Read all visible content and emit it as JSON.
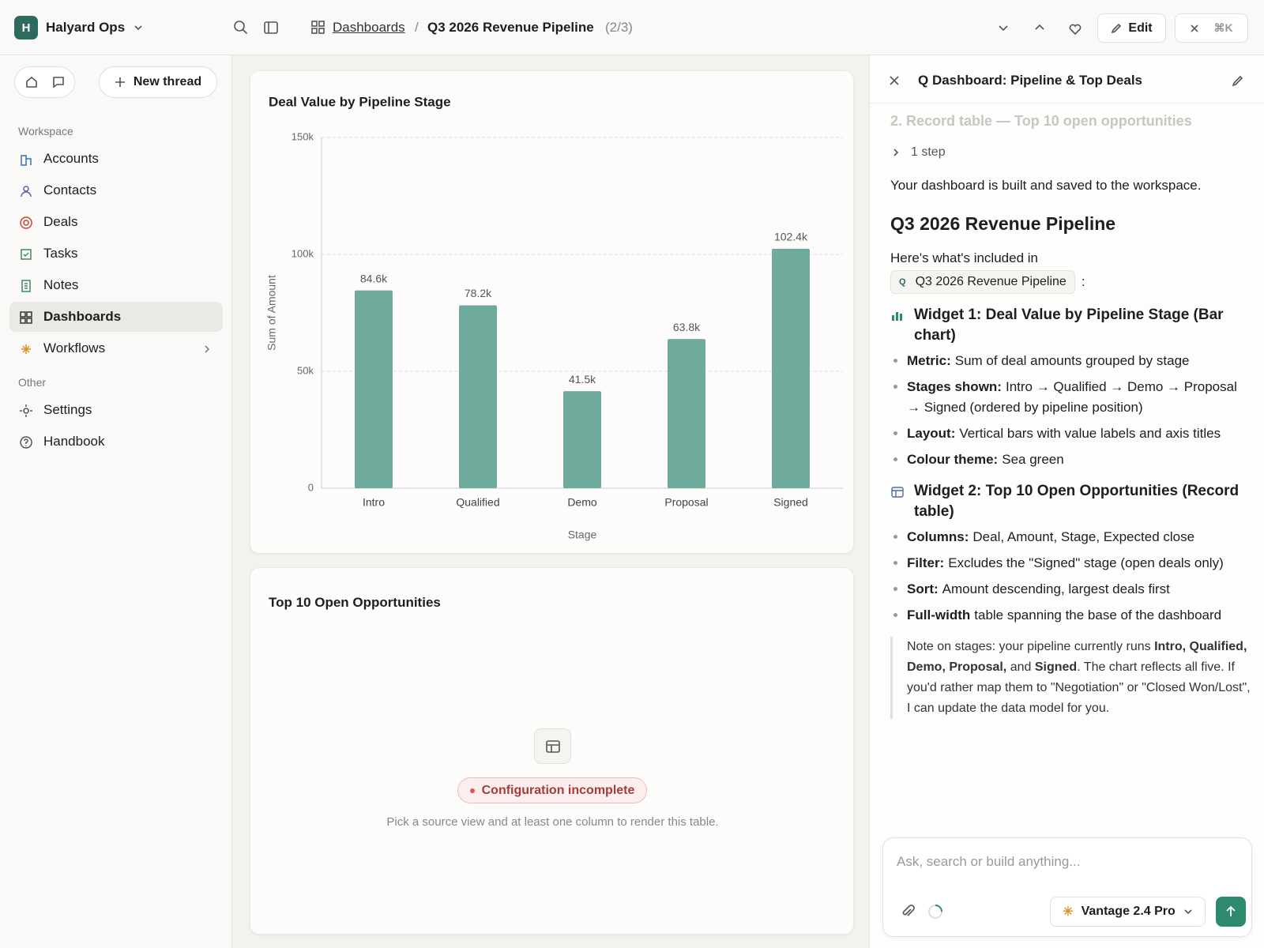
{
  "header": {
    "avatar": "H",
    "workspace": "Halyard Ops",
    "breadcrumb": "Dashboards",
    "separator": "/",
    "page": "Q3 2026 Revenue Pipeline",
    "position": "(2/3)",
    "edit": "Edit",
    "shortcut": "⌘K"
  },
  "sidebar": {
    "new_thread": "New thread",
    "sections": [
      {
        "title": "Workspace",
        "items": [
          "Accounts",
          "Contacts",
          "Deals",
          "Tasks",
          "Notes",
          "Dashboards",
          "Workflows"
        ]
      },
      {
        "title": "Other",
        "items": [
          "Settings",
          "Handbook"
        ]
      }
    ],
    "active": "Dashboards"
  },
  "chart_data": {
    "type": "bar",
    "title": "Deal Value by Pipeline Stage",
    "xlabel": "Stage",
    "ylabel": "Sum of Amount",
    "categories": [
      "Intro",
      "Qualified",
      "Demo",
      "Proposal",
      "Signed"
    ],
    "values": [
      84600,
      78200,
      41500,
      63800,
      102400
    ],
    "value_labels": [
      "84.6k",
      "78.2k",
      "41.5k",
      "63.8k",
      "102.4k"
    ],
    "color": "#6fab9d",
    "ylim": [
      0,
      150000
    ],
    "yticks": [
      0,
      {
        "value": 50000,
        "label": "50k"
      },
      {
        "value": 100000,
        "label": "100k"
      },
      {
        "value": 150000,
        "label": "150k"
      }
    ],
    "grid": true
  },
  "table_widget": {
    "title": "Top 10 Open Opportunities",
    "status": "Configuration incomplete",
    "hint": "Pick a source view and at least one column to render this table."
  },
  "panel": {
    "title": "Q Dashboard: Pipeline & Top Deals",
    "faded": "2. Record table — Top 10 open opportunities",
    "steps": "1 step",
    "intro": "Your dashboard is built and saved to the workspace.",
    "heading": "Q3 2026 Revenue Pipeline",
    "included": "Here's what's included in",
    "chip_icon": "Q",
    "chip": "Q3 2026 Revenue Pipeline",
    "colon": ":",
    "widgets": [
      {
        "heading": "Widget 1: Deal Value by Pipeline Stage (Bar chart)",
        "bullets": [
          {
            "label": "Metric:",
            "text": "Sum of deal amounts grouped by stage"
          },
          {
            "label": "Stages shown:",
            "text": "Intro → Qualified → Demo → Proposal → Signed (ordered by pipeline position)"
          },
          {
            "label": "Layout:",
            "text": "Vertical bars with value labels and axis titles"
          },
          {
            "label": "Colour theme:",
            "text": "Sea green"
          }
        ]
      },
      {
        "heading": "Widget 2: Top 10 Open Opportunities (Record table)",
        "bullets": [
          {
            "label": "Columns:",
            "text": "Deal, Amount, Stage, Expected close"
          },
          {
            "label": "Filter:",
            "text": "Excludes the \"Signed\" stage (open deals only)"
          },
          {
            "label": "Sort:",
            "text": "Amount descending, largest deals first"
          },
          {
            "label": "Full-width",
            "text": "table spanning the base of the dashboard"
          }
        ]
      }
    ],
    "note": [
      {
        "text": "Note on stages: your pipeline currently runs ",
        "bold": false
      },
      {
        "text": "Intro, Qualified, Demo, Proposal,",
        "bold": true
      },
      {
        "text": " and ",
        "bold": false
      },
      {
        "text": "Signed",
        "bold": true
      },
      {
        "text": ". The chart reflects all five. If you'd rather map them to \"Negotiation\" or \"Closed Won/Lost\", I can update the data model for you.",
        "bold": false
      }
    ],
    "placeholder": "Ask, search or build anything...",
    "model": "Vantage 2.4 Pro"
  }
}
